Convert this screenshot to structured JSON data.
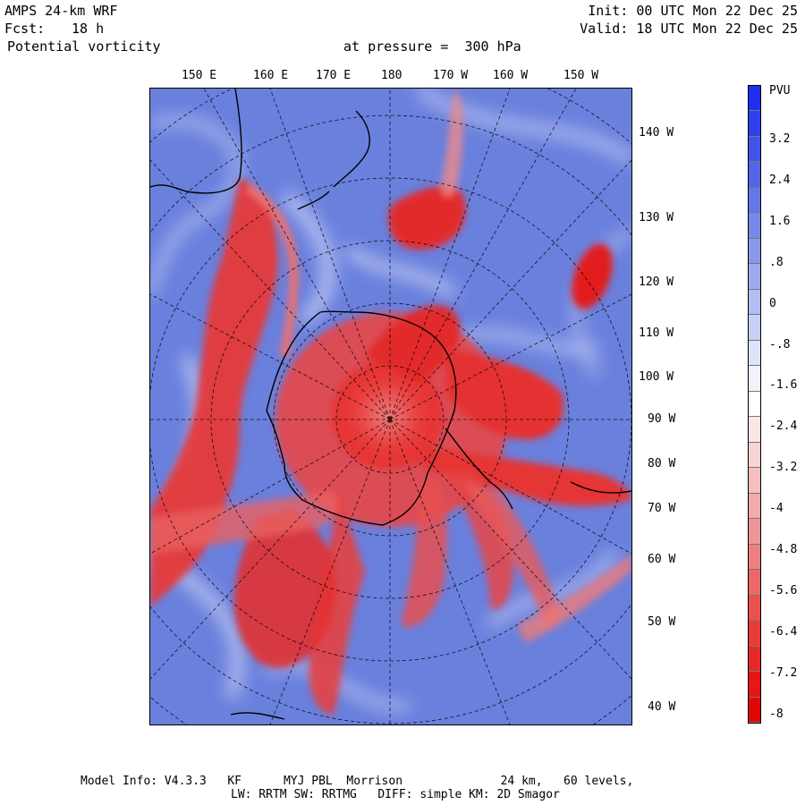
{
  "header": {
    "model": "AMPS 24-km WRF",
    "fcst_label": "Fcst:",
    "fcst_value": "18 h",
    "field": "Potential vorticity",
    "level": "at pressure =  300 hPa",
    "init": "Init: 00 UTC Mon 22 Dec 25",
    "valid": "Valid: 18 UTC Mon 22 Dec 25"
  },
  "top_longitudes": [
    "150 E",
    "160 E",
    "170 E",
    "180",
    "170 W",
    "160 W",
    "150 W"
  ],
  "right_longitudes": [
    "140 W",
    "130 W",
    "120 W",
    "110 W",
    "100 W",
    "90 W",
    "80 W",
    "70 W",
    "60 W",
    "50 W",
    "40 W"
  ],
  "colorbar": {
    "unit": "PVU",
    "labels": [
      "3.2",
      "2.4",
      "1.6",
      ".8",
      "0",
      "-.8",
      "-1.6",
      "-2.4",
      "-3.2",
      "-4",
      "-4.8",
      "-5.6",
      "-6.4",
      "-7.2",
      "-8"
    ],
    "colors": [
      "#1f2ff0",
      "#3040ee",
      "#4153ec",
      "#5365e9",
      "#6477e8",
      "#7688e8",
      "#8998ea",
      "#9daaee",
      "#b2bdf2",
      "#c8d0f6",
      "#dde3fa",
      "#f0f2fd",
      "#ffffff",
      "#fbe6e6",
      "#f8d3d3",
      "#f5bfbf",
      "#f2aaaa",
      "#f09595",
      "#ee7f7f",
      "#ec6868",
      "#ea5050",
      "#e83b3b",
      "#e62828",
      "#e41616",
      "#e20505"
    ]
  },
  "footer": {
    "line1": "Model Info: V4.3.3   KF      MYJ PBL  Morrison              24 km,   60 levels,",
    "line2": "LW: RRTM SW: RRTMG   DIFF: simple KM: 2D Smagor"
  },
  "colors": {
    "background_blue": "#6a80dd",
    "pv_red": "#e21a1a",
    "frame": "#000000"
  }
}
